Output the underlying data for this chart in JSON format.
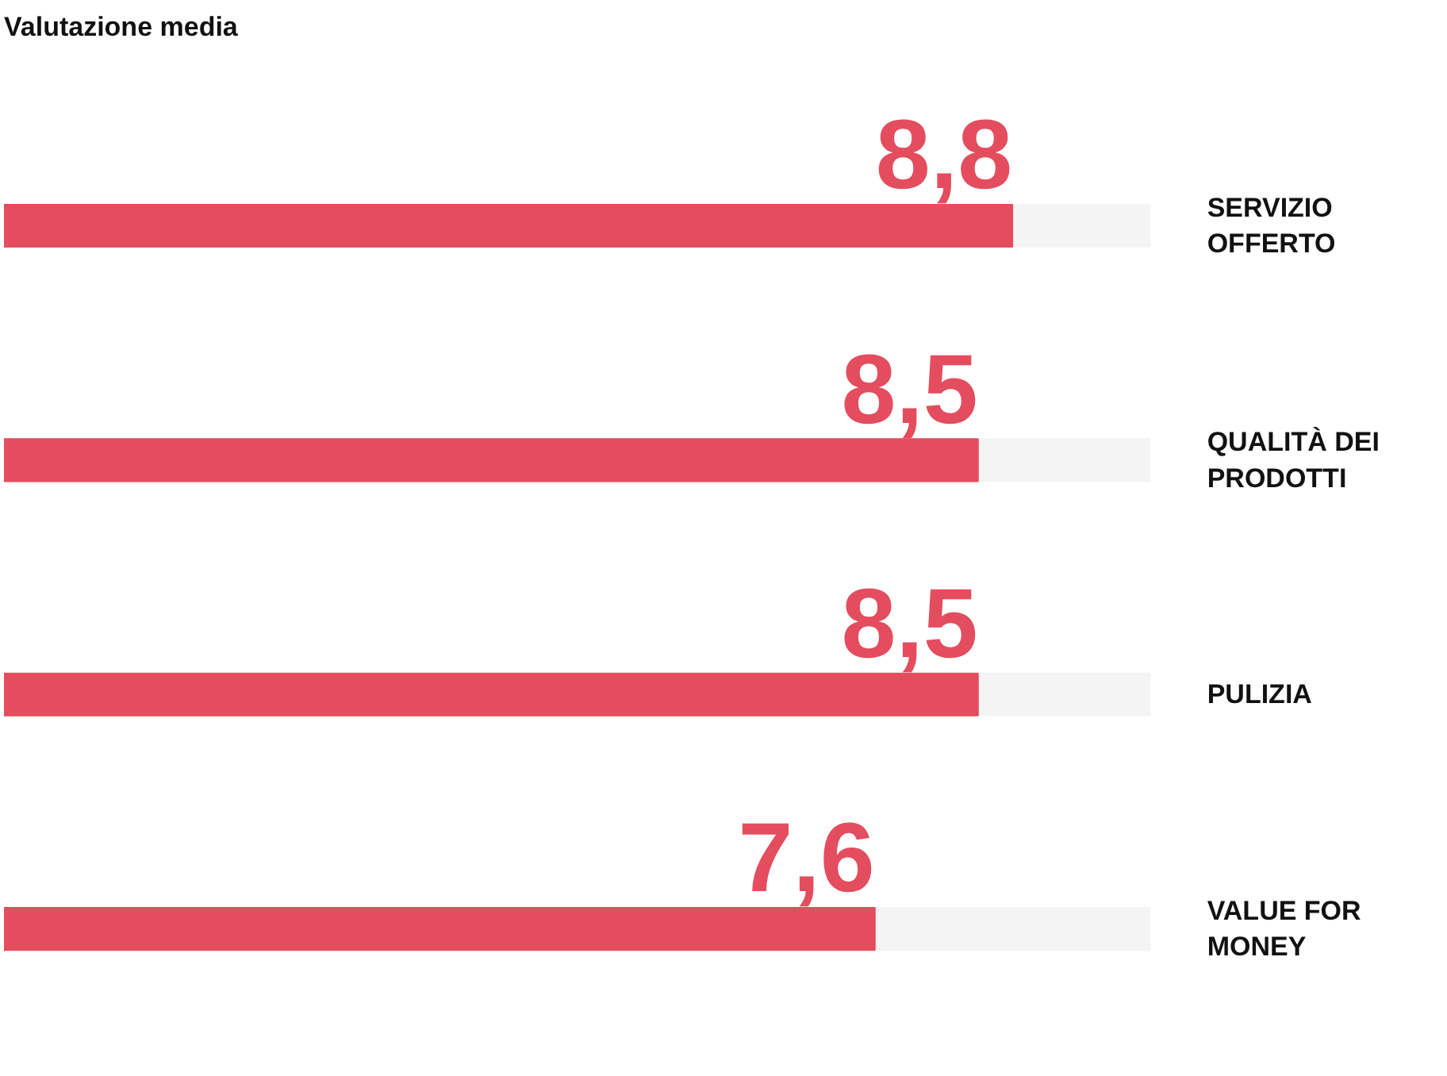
{
  "chart_data": {
    "type": "bar",
    "orientation": "horizontal",
    "title": "Valutazione media",
    "categories": [
      "SERVIZIO OFFERTO",
      "QUALITÀ DEI PRODOTTI",
      "PULIZIA",
      "VALUE FOR MONEY"
    ],
    "values": [
      8.8,
      8.5,
      8.5,
      7.6
    ],
    "value_labels": [
      "8,8",
      "8,5",
      "8,5",
      "7,6"
    ],
    "color": "#e44d5e",
    "xlim": [
      0,
      10
    ],
    "tick_labels": false,
    "grid": false
  }
}
